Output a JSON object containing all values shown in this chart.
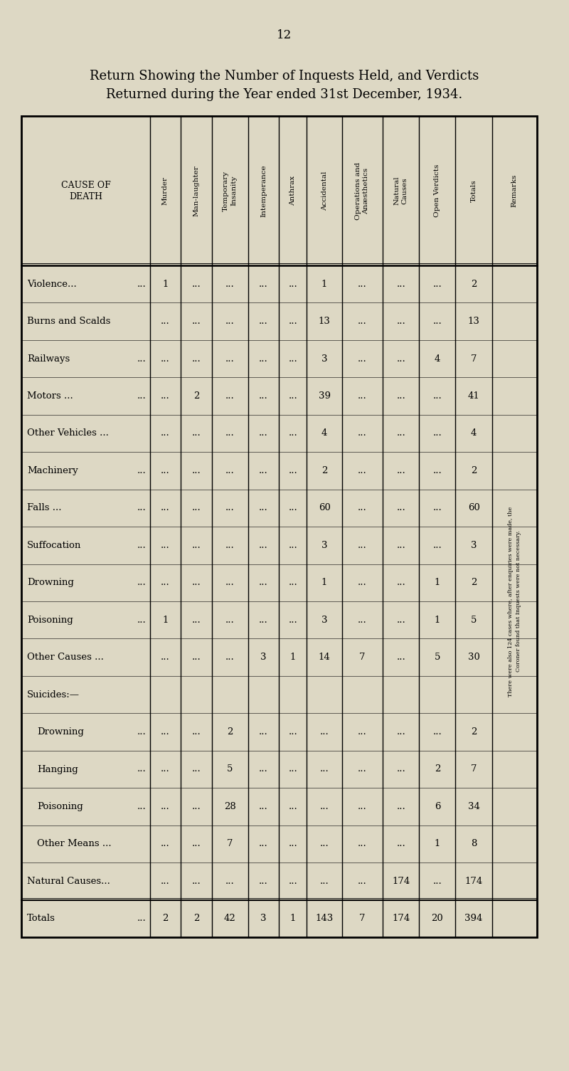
{
  "page_number": "12",
  "title_line1": "Return Showing the Number of Inquests Held, and Verdicts",
  "title_line2": "Returned during the Year ended 31st December, 1934.",
  "bg_color": "#ddd8c4",
  "col_headers_rotated": [
    "Murder",
    "Man-laughter",
    "Temporary\nInsanity",
    "Intemperance",
    "Anthrax",
    "Accidental",
    "Operations and\nAnæsthetics",
    "Natural\nCauses",
    "Open Verdicts",
    "Totals",
    "Remarks"
  ],
  "rows": [
    {
      "label": "Violence...",
      "dots": "...",
      "is_section": false,
      "is_indent": false,
      "is_total": false,
      "Murder": "1",
      "Man-laughter": "...",
      "Temporary Insanity": "...",
      "Intemperance": "...",
      "Anthrax": "...",
      "Accidental": "1",
      "Operations": "...",
      "Natural Causes": "...",
      "Open Verdicts": "...",
      "Totals": "2"
    },
    {
      "label": "Burns and Scalds",
      "dots": "",
      "is_section": false,
      "is_indent": false,
      "is_total": false,
      "Murder": "...",
      "Man-laughter": "...",
      "Temporary Insanity": "...",
      "Intemperance": "...",
      "Anthrax": "...",
      "Accidental": "13",
      "Operations": "...",
      "Natural Causes": "...",
      "Open Verdicts": "...",
      "Totals": "13"
    },
    {
      "label": "Railways",
      "dots": "...",
      "is_section": false,
      "is_indent": false,
      "is_total": false,
      "Murder": "...",
      "Man-laughter": "...",
      "Temporary Insanity": "...",
      "Intemperance": "...",
      "Anthrax": "...",
      "Accidental": "3",
      "Operations": "...",
      "Natural Causes": "...",
      "Open Verdicts": "4",
      "Totals": "7"
    },
    {
      "label": "Motors ...",
      "dots": "...",
      "is_section": false,
      "is_indent": false,
      "is_total": false,
      "Murder": "...",
      "Man-laughter": "2",
      "Temporary Insanity": "...",
      "Intemperance": "...",
      "Anthrax": "...",
      "Accidental": "39",
      "Operations": "...",
      "Natural Causes": "...",
      "Open Verdicts": "...",
      "Totals": "41"
    },
    {
      "label": "Other Vehicles ...",
      "dots": "",
      "is_section": false,
      "is_indent": false,
      "is_total": false,
      "Murder": "...",
      "Man-laughter": "...",
      "Temporary Insanity": "...",
      "Intemperance": "...",
      "Anthrax": "...",
      "Accidental": "4",
      "Operations": "...",
      "Natural Causes": "...",
      "Open Verdicts": "...",
      "Totals": "4"
    },
    {
      "label": "Machinery",
      "dots": "...",
      "is_section": false,
      "is_indent": false,
      "is_total": false,
      "Murder": "...",
      "Man-laughter": "...",
      "Temporary Insanity": "...",
      "Intemperance": "...",
      "Anthrax": "...",
      "Accidental": "2",
      "Operations": "...",
      "Natural Causes": "...",
      "Open Verdicts": "...",
      "Totals": "2"
    },
    {
      "label": "Falls ...",
      "dots": "...",
      "is_section": false,
      "is_indent": false,
      "is_total": false,
      "Murder": "...",
      "Man-laughter": "...",
      "Temporary Insanity": "...",
      "Intemperance": "...",
      "Anthrax": "...",
      "Accidental": "60",
      "Operations": "...",
      "Natural Causes": "...",
      "Open Verdicts": "...",
      "Totals": "60"
    },
    {
      "label": "Suffocation",
      "dots": "...",
      "is_section": false,
      "is_indent": false,
      "is_total": false,
      "Murder": "...",
      "Man-laughter": "...",
      "Temporary Insanity": "...",
      "Intemperance": "...",
      "Anthrax": "...",
      "Accidental": "3",
      "Operations": "...",
      "Natural Causes": "...",
      "Open Verdicts": "...",
      "Totals": "3"
    },
    {
      "label": "Drowning",
      "dots": "...",
      "is_section": false,
      "is_indent": false,
      "is_total": false,
      "Murder": "...",
      "Man-laughter": "...",
      "Temporary Insanity": "...",
      "Intemperance": "...",
      "Anthrax": "...",
      "Accidental": "1",
      "Operations": "...",
      "Natural Causes": "...",
      "Open Verdicts": "1",
      "Totals": "2"
    },
    {
      "label": "Poisoning",
      "dots": "...",
      "is_section": false,
      "is_indent": false,
      "is_total": false,
      "Murder": "1",
      "Man-laughter": "...",
      "Temporary Insanity": "...",
      "Intemperance": "...",
      "Anthrax": "...",
      "Accidental": "3",
      "Operations": "...",
      "Natural Causes": "...",
      "Open Verdicts": "1",
      "Totals": "5"
    },
    {
      "label": "Other Causes ...",
      "dots": "",
      "is_section": false,
      "is_indent": false,
      "is_total": false,
      "Murder": "...",
      "Man-laughter": "...",
      "Temporary Insanity": "...",
      "Intemperance": "3",
      "Anthrax": "1",
      "Accidental": "14",
      "Operations": "7",
      "Natural Causes": "...",
      "Open Verdicts": "5",
      "Totals": "30"
    },
    {
      "label": "Suicides:—",
      "dots": "",
      "is_section": true,
      "is_indent": false,
      "is_total": false,
      "Murder": "",
      "Man-laughter": "",
      "Temporary Insanity": "",
      "Intemperance": "",
      "Anthrax": "",
      "Accidental": "",
      "Operations": "",
      "Natural Causes": "",
      "Open Verdicts": "",
      "Totals": ""
    },
    {
      "label": "Drowning",
      "dots": "...",
      "is_section": false,
      "is_indent": true,
      "is_total": false,
      "Murder": "...",
      "Man-laughter": "...",
      "Temporary Insanity": "2",
      "Intemperance": "...",
      "Anthrax": "...",
      "Accidental": "...",
      "Operations": "...",
      "Natural Causes": "...",
      "Open Verdicts": "...",
      "Totals": "2"
    },
    {
      "label": "Hanging",
      "dots": "...",
      "is_section": false,
      "is_indent": true,
      "is_total": false,
      "Murder": "...",
      "Man-laughter": "...",
      "Temporary Insanity": "5",
      "Intemperance": "...",
      "Anthrax": "...",
      "Accidental": "...",
      "Operations": "...",
      "Natural Causes": "...",
      "Open Verdicts": "2",
      "Totals": "7"
    },
    {
      "label": "Poisoning",
      "dots": "...",
      "is_section": false,
      "is_indent": true,
      "is_total": false,
      "Murder": "...",
      "Man-laughter": "...",
      "Temporary Insanity": "28",
      "Intemperance": "...",
      "Anthrax": "...",
      "Accidental": "...",
      "Operations": "...",
      "Natural Causes": "...",
      "Open Verdicts": "6",
      "Totals": "34"
    },
    {
      "label": "Other Means ...",
      "dots": "",
      "is_section": false,
      "is_indent": true,
      "is_total": false,
      "Murder": "...",
      "Man-laughter": "...",
      "Temporary Insanity": "7",
      "Intemperance": "...",
      "Anthrax": "...",
      "Accidental": "...",
      "Operations": "...",
      "Natural Causes": "...",
      "Open Verdicts": "1",
      "Totals": "8"
    },
    {
      "label": "Natural Causes...",
      "dots": "",
      "is_section": false,
      "is_indent": false,
      "is_total": false,
      "Murder": "...",
      "Man-laughter": "...",
      "Temporary Insanity": "...",
      "Intemperance": "...",
      "Anthrax": "...",
      "Accidental": "...",
      "Operations": "...",
      "Natural Causes": "174",
      "Open Verdicts": "...",
      "Totals": "174"
    },
    {
      "label": "Totals",
      "dots": "...",
      "is_section": false,
      "is_indent": false,
      "is_total": true,
      "Murder": "2",
      "Man-laughter": "2",
      "Temporary Insanity": "42",
      "Intemperance": "3",
      "Anthrax": "1",
      "Accidental": "143",
      "Operations": "7",
      "Natural Causes": "174",
      "Open Verdicts": "20",
      "Totals": "394"
    }
  ],
  "remarks_text": "There were also 124 cases where, after enquiries were made, the\nCoroner found that Inquests were not necessary.",
  "col_keys": [
    "Murder",
    "Man-laughter",
    "Temporary Insanity",
    "Intemperance",
    "Anthrax",
    "Accidental",
    "Operations",
    "Natural Causes",
    "Open Verdicts",
    "Totals"
  ],
  "col_widths_rel": [
    3.0,
    0.72,
    0.72,
    0.85,
    0.72,
    0.65,
    0.82,
    0.95,
    0.85,
    0.85,
    0.85,
    1.05
  ]
}
